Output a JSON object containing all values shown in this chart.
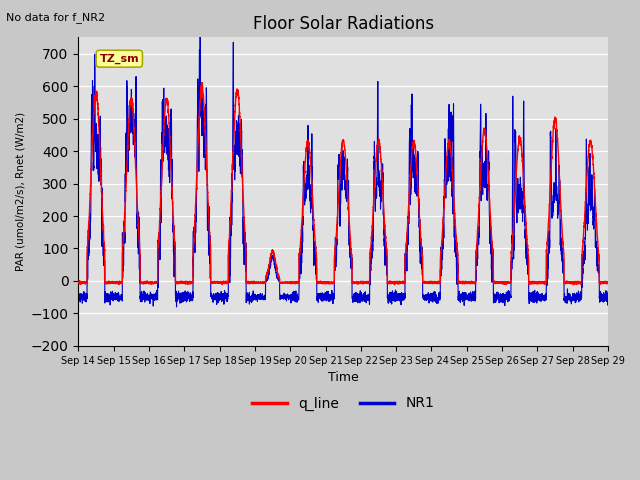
{
  "title": "Floor Solar Radiations",
  "subtitle": "No data for f_NR2",
  "xlabel": "Time",
  "ylabel": "PAR (umol/m2/s), Rnet (W/m2)",
  "ylim": [
    -200,
    750
  ],
  "yticks": [
    -200,
    -100,
    0,
    100,
    200,
    300,
    400,
    500,
    600,
    700
  ],
  "xtick_labels": [
    "Sep 14",
    "Sep 15",
    "Sep 16",
    "Sep 17",
    "Sep 18",
    "Sep 19",
    "Sep 20",
    "Sep 21",
    "Sep 22",
    "Sep 23",
    "Sep 24",
    "Sep 25",
    "Sep 26",
    "Sep 27",
    "Sep 28",
    "Sep 29"
  ],
  "legend_label1": "q_line",
  "legend_label2": "NR1",
  "legend_color1": "#FF0000",
  "legend_color2": "#0000CC",
  "fig_facecolor": "#C8C8C8",
  "plot_facecolor": "#E0E0E0",
  "box_label": "TZ_sm",
  "box_facecolor": "#FFFF99",
  "box_edgecolor": "#AAAA00",
  "peaks_q": [
    580,
    560,
    560,
    600,
    590,
    90,
    430,
    430,
    430,
    430,
    430,
    465,
    440,
    500,
    430
  ],
  "peaks_nr1": [
    440,
    530,
    460,
    530,
    460,
    75,
    310,
    345,
    315,
    370,
    380,
    335,
    280,
    275,
    240
  ],
  "nr1_spikes": [
    290,
    265,
    265,
    265,
    265,
    0,
    180,
    200,
    230,
    230,
    200,
    230,
    270,
    270,
    160
  ],
  "night_q": -5,
  "night_nr1": -50,
  "n_days": 15,
  "pts_per_day": 288
}
